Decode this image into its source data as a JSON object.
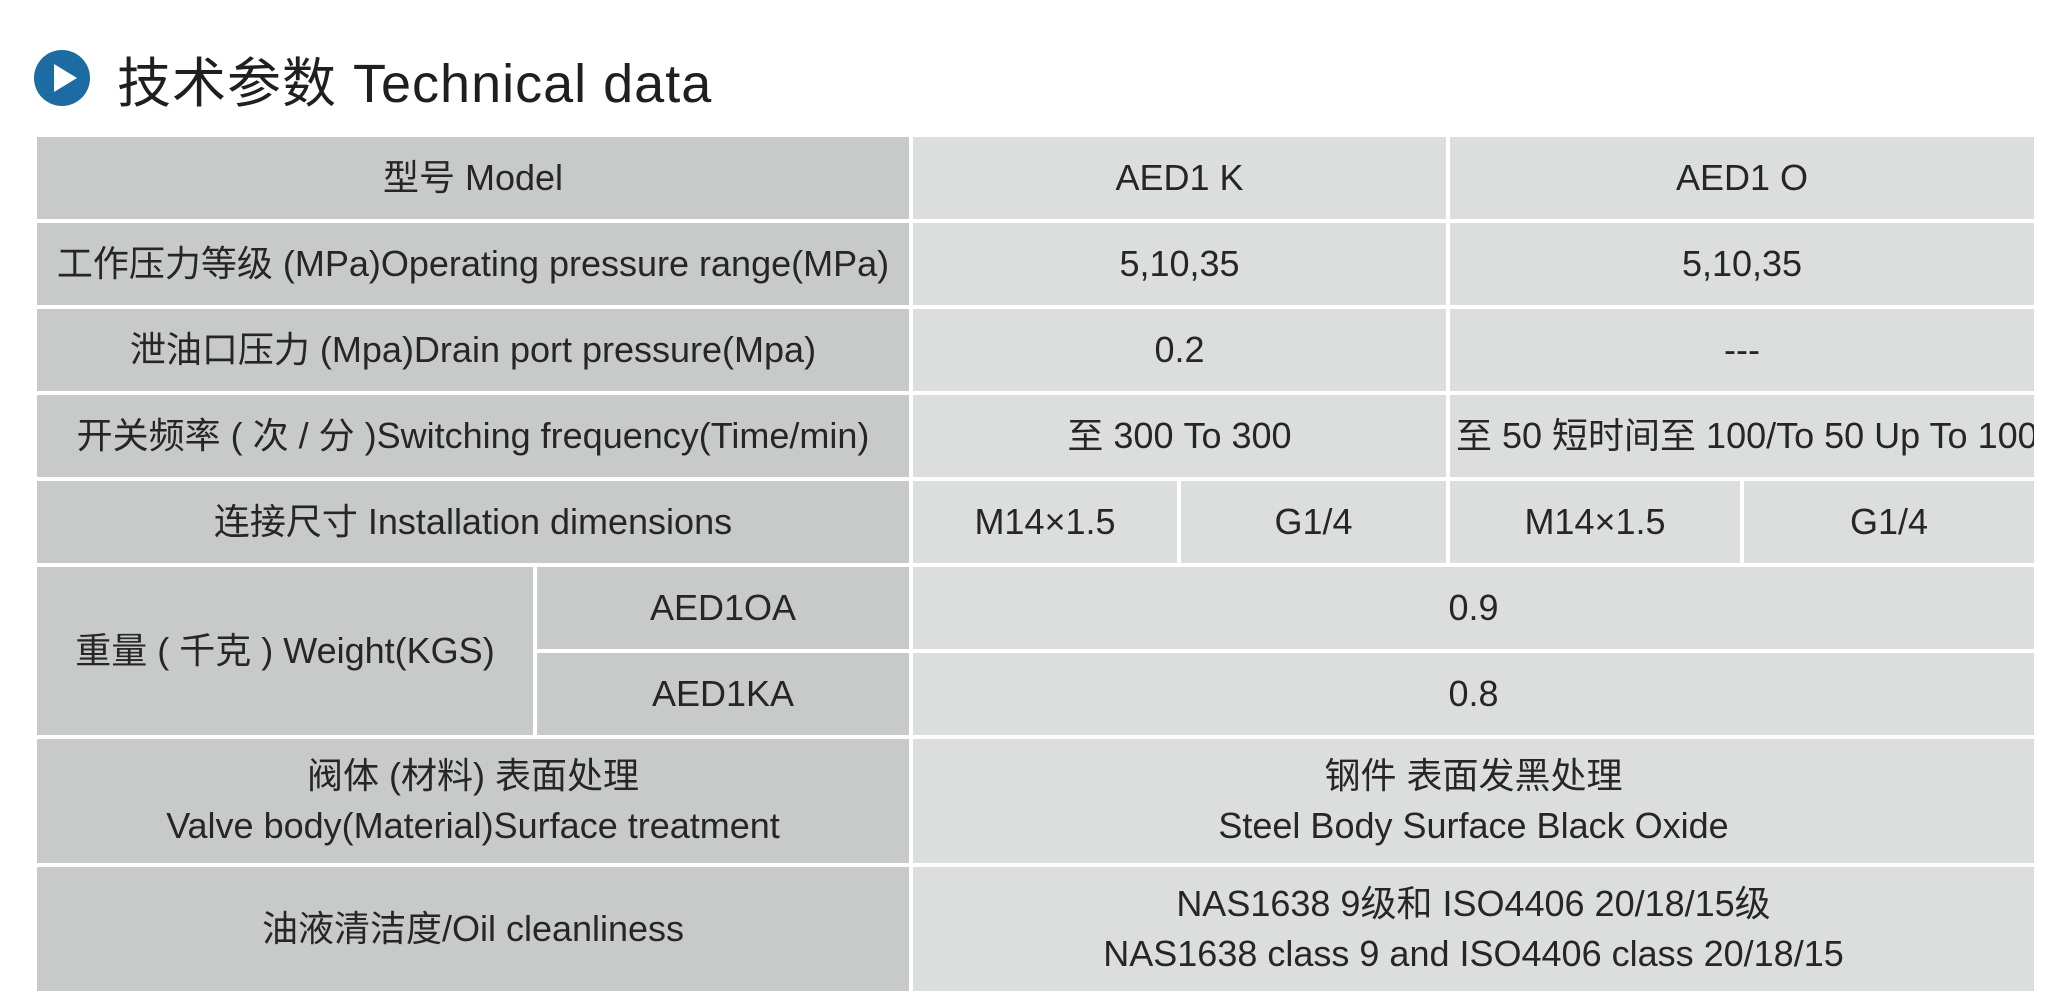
{
  "header": {
    "icon": "play-circle-icon",
    "icon_color": "#1c6ba2",
    "title": "技术参数 Technical data"
  },
  "table": {
    "model": {
      "label": "型号 Model",
      "values": [
        "AED1 K",
        "AED1 O"
      ]
    },
    "operating_pressure": {
      "label": "工作压力等级 (MPa)Operating pressure range(MPa)",
      "values": [
        "5,10,35",
        "5,10,35"
      ]
    },
    "drain_pressure": {
      "label": "泄油口压力 (Mpa)Drain port pressure(Mpa)",
      "values": [
        "0.2",
        "---"
      ]
    },
    "switching_frequency": {
      "label": "开关频率 ( 次 / 分 )Switching frequency(Time/min)",
      "values": [
        "至 300 To 300",
        "至 50 短时间至 100/To 50 Up To 100"
      ]
    },
    "installation": {
      "label": "连接尺寸 Installation dimensions",
      "values": [
        "M14×1.5",
        "G1/4",
        "M14×1.5",
        "G1/4"
      ]
    },
    "weight": {
      "label": "重量 ( 千克 ) Weight(KGS)",
      "rows": [
        {
          "model": "AED1OA",
          "value": "0.9"
        },
        {
          "model": "AED1KA",
          "value": "0.8"
        }
      ]
    },
    "surface": {
      "label_lines": [
        "阀体 (材料) 表面处理",
        "Valve body(Material)Surface treatment"
      ],
      "value_lines": [
        "钢件 表面发黑处理",
        "Steel Body Surface Black Oxide"
      ]
    },
    "cleanliness": {
      "label": "油液清洁度/Oil cleanliness",
      "value_lines": [
        "NAS1638 9级和 ISO4406 20/18/15级",
        "NAS1638 class 9 and ISO4406 class 20/18/15"
      ]
    }
  }
}
